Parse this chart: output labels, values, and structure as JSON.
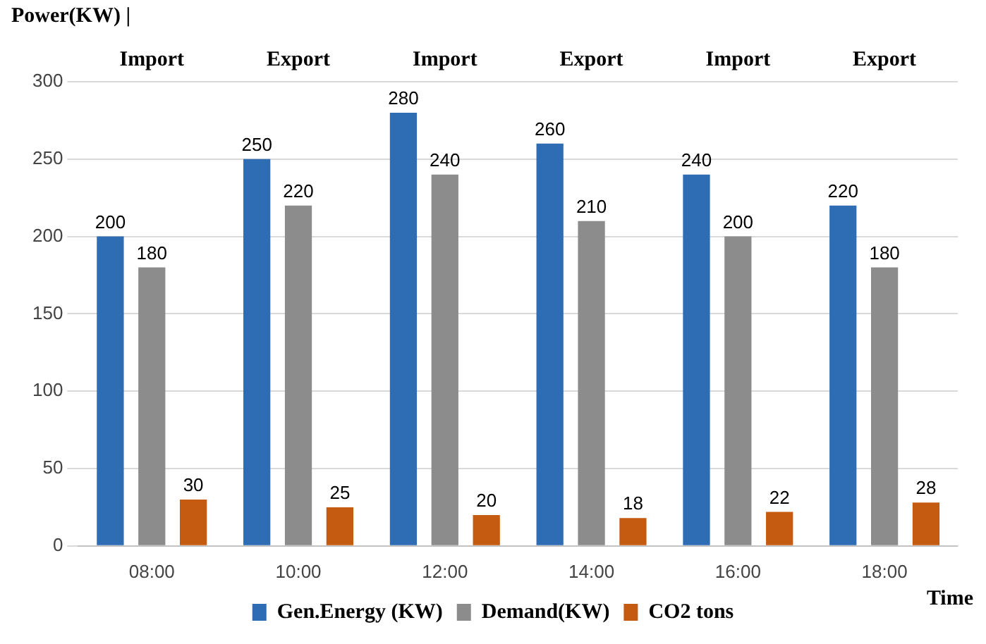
{
  "chart_data": {
    "type": "bar",
    "xlabel": "Time",
    "ylabel": "Power(KW) |",
    "categories": [
      "08:00",
      "10:00",
      "12:00",
      "14:00",
      "16:00",
      "18:00"
    ],
    "series": [
      {
        "name": "Gen.Energy (KW)",
        "color": "#2e6db4",
        "values": [
          200,
          250,
          280,
          260,
          240,
          220
        ]
      },
      {
        "name": "Demand(KW)",
        "color": "#8c8c8c",
        "values": [
          180,
          220,
          240,
          210,
          200,
          180
        ]
      },
      {
        "name": "CO2 tons",
        "color": "#c55a11",
        "values": [
          30,
          25,
          20,
          18,
          22,
          28
        ]
      }
    ],
    "annotations": [
      "Import",
      "Export",
      "Import",
      "Export",
      "Import",
      "Export"
    ],
    "ylim": [
      0,
      300
    ],
    "yticks": [
      0,
      50,
      100,
      150,
      200,
      250,
      300
    ],
    "grid": "y",
    "legend": "bottom",
    "data_labels": true
  }
}
